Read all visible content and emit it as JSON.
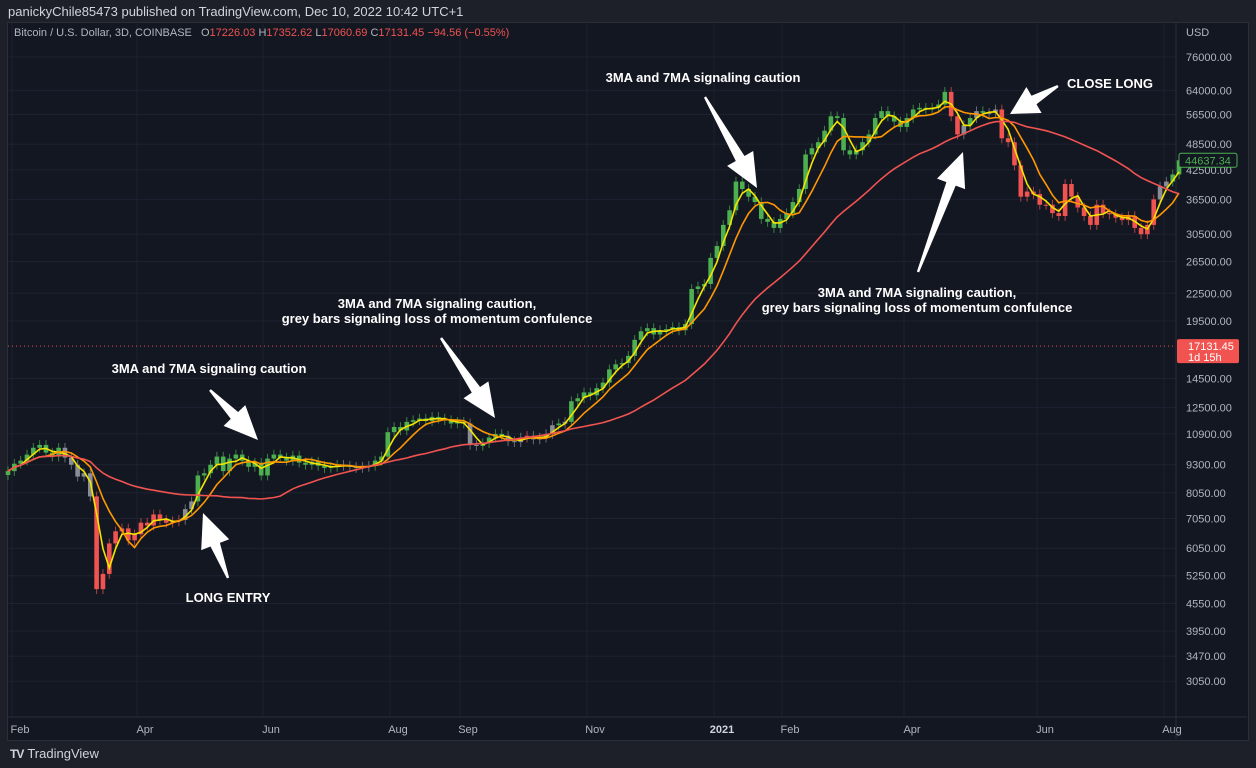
{
  "header": {
    "published": "panickyChile85473 published on TradingView.com, Dec 10, 2022 10:42 UTC+1"
  },
  "legend": {
    "symbol": "Bitcoin / U.S. Dollar, 3D, COINBASE",
    "open_label": "O",
    "open": "17226.03",
    "high_label": "H",
    "high": "17352.62",
    "low_label": "L",
    "low": "17060.69",
    "close_label": "C",
    "close": "17131.45",
    "change": "−94.56 (−0.55%)"
  },
  "price_scale": {
    "currency": "USD",
    "labels": [
      "76000.00",
      "64000.00",
      "56500.00",
      "48500.00",
      "42500.00",
      "36500.00",
      "30500.00",
      "26500.00",
      "22500.00",
      "19500.00",
      "14500.00",
      "12500.00",
      "10900.00",
      "9300.00",
      "8050.00",
      "7050.00",
      "6050.00",
      "5250.00",
      "4550.00",
      "3950.00",
      "3470.00",
      "3050.00"
    ],
    "last_price_tag": "44637.34",
    "current_price_tag": "17131.45",
    "countdown": "1d 15h"
  },
  "time_axis": {
    "labels": [
      "Feb",
      "Apr",
      "Jun",
      "Aug",
      "Sep",
      "Nov",
      "2021",
      "Feb",
      "Apr",
      "Jun",
      "Aug"
    ]
  },
  "annotations": [
    {
      "lines": [
        "3MA and 7MA signaling caution"
      ]
    },
    {
      "lines": [
        "LONG ENTRY"
      ]
    },
    {
      "lines": [
        "3MA and 7MA signaling caution,",
        "grey bars signaling loss of momentum confulence"
      ]
    },
    {
      "lines": [
        "3MA and 7MA signaling caution"
      ]
    },
    {
      "lines": [
        "CLOSE LONG"
      ]
    },
    {
      "lines": [
        "3MA and 7MA signaling caution,",
        "grey bars signaling loss of momentum confulence"
      ]
    }
  ],
  "footer": {
    "brand": "TradingView"
  },
  "colors": {
    "background": "#131722",
    "up": "#4caf50",
    "down": "#f05350",
    "neutral": "#8a8d96",
    "ma_fast": "#f5e400",
    "ma_mid": "#ff9800",
    "ma_slow": "#f05350",
    "grid": "#1e2230"
  },
  "chart_data": {
    "type": "candlestick",
    "symbol": "Bitcoin / U.S. Dollar",
    "interval": "3D",
    "y_scale": "log",
    "ylim": [
      3050,
      76000
    ],
    "x_ticks": [
      "Feb",
      "Apr",
      "Jun",
      "Aug",
      "Sep",
      "Nov",
      "2021",
      "Feb",
      "Apr",
      "Jun",
      "Aug"
    ],
    "closes": [
      9000,
      9350,
      9500,
      9800,
      10150,
      10300,
      9900,
      9700,
      10150,
      9650,
      9300,
      8750,
      8900,
      7900,
      4900,
      5300,
      6200,
      6600,
      6700,
      6300,
      6500,
      6900,
      6800,
      7200,
      7000,
      6900,
      6950,
      7000,
      7400,
      7700,
      8800,
      8900,
      9300,
      9700,
      9000,
      9600,
      9800,
      9500,
      9200,
      9400,
      8800,
      9600,
      9800,
      9650,
      9500,
      9750,
      9400,
      9300,
      9450,
      9250,
      9150,
      9200,
      9300,
      9250,
      9200,
      9150,
      9200,
      9250,
      9500,
      9700,
      11000,
      11300,
      11100,
      11600,
      11700,
      11800,
      11650,
      11900,
      11800,
      11700,
      11500,
      11600,
      11500,
      10300,
      10250,
      10400,
      10700,
      10900,
      10800,
      10500,
      10450,
      10700,
      10800,
      10600,
      10700,
      10900,
      11400,
      11500,
      11600,
      12900,
      13100,
      13500,
      13300,
      13800,
      14200,
      15200,
      15600,
      15700,
      16300,
      17700,
      18500,
      18800,
      18200,
      18600,
      18700,
      18900,
      18600,
      19200,
      23000,
      23300,
      23600,
      27000,
      28700,
      32000,
      34500,
      40000,
      38500,
      37000,
      36000,
      33000,
      32500,
      31500,
      33000,
      34000,
      36000,
      38500,
      46000,
      47500,
      49000,
      52000,
      56000,
      55500,
      47000,
      46000,
      47000,
      49000,
      51000,
      55500,
      57500,
      56000,
      54500,
      53000,
      55500,
      58000,
      58500,
      58000,
      58500,
      59500,
      63500,
      56000,
      51000,
      53500,
      55500,
      57500,
      57000,
      57000,
      58000,
      50000,
      49000,
      43500,
      37000,
      38000,
      37500,
      35500,
      35500,
      34000,
      33500,
      39500,
      37000,
      35000,
      33500,
      32000,
      35500,
      34000,
      33800,
      33200,
      32800,
      33500,
      31500,
      30500,
      32000,
      36500,
      39000,
      40000,
      41500,
      44637.34
    ],
    "bar_color_runs": [
      [
        "up",
        9
      ],
      [
        "neutral",
        5
      ],
      [
        "down",
        14
      ],
      [
        "neutral",
        2
      ],
      [
        "up",
        23
      ],
      [
        "neutral",
        5
      ],
      [
        "up",
        15
      ],
      [
        "neutral",
        2
      ],
      [
        "up",
        4
      ],
      [
        "neutral",
        3
      ],
      [
        "down",
        1
      ],
      [
        "neutral",
        4
      ],
      [
        "up",
        1
      ],
      [
        "neutral",
        1
      ],
      [
        "up",
        60
      ],
      [
        "down",
        2
      ],
      [
        "neutral",
        1
      ],
      [
        "up",
        1
      ],
      [
        "neutral",
        1
      ],
      [
        "up",
        1
      ],
      [
        "neutral",
        2
      ],
      [
        "down",
        25
      ],
      [
        "neutral",
        2
      ],
      [
        "up",
        2
      ]
    ],
    "moving_averages": [
      {
        "period": 3,
        "color": "#f5e400"
      },
      {
        "period": 7,
        "color": "#ff9800"
      },
      {
        "period": 30,
        "color": "#f05350"
      }
    ],
    "last_price": 44637.34,
    "current_price": 17131.45
  }
}
